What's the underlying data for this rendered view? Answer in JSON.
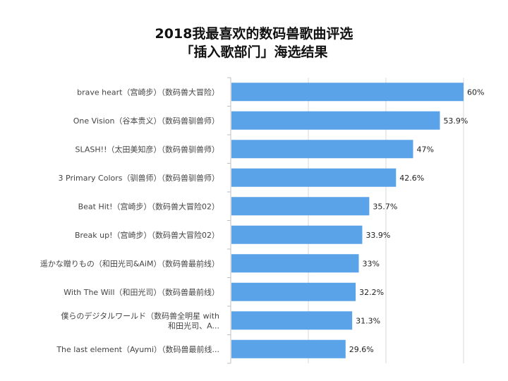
{
  "chart_data": {
    "type": "bar",
    "orientation": "horizontal",
    "title": "2018我最喜欢的数码兽歌曲评选",
    "subtitle": "「插入歌部门」海选结果",
    "categories": [
      [
        "brave heart（宫崎步）（数码兽大冒险）"
      ],
      [
        "One Vision（谷本贵义）（数码兽驯兽师）"
      ],
      [
        "SLASH!!（太田美知彦）（数码兽驯兽师）"
      ],
      [
        "3 Primary Colors（驯兽师）（数码兽驯兽师）"
      ],
      [
        "Beat Hit!（宫崎步）（数码兽大冒险02）"
      ],
      [
        "Break up!（宫崎步）（数码兽大冒险02）"
      ],
      [
        "遥かな贈りもの（和田光司&AiM）（数码兽最前线）"
      ],
      [
        "With The Will（和田光司）（数码兽最前线）"
      ],
      [
        "僕らのデジタルワールド（数码兽全明星 with",
        "和田光司、A..."
      ],
      [
        "The last element（Ayumi）（数码兽最前线..."
      ]
    ],
    "values": [
      60,
      53.9,
      47,
      42.6,
      35.7,
      33.9,
      33,
      32.2,
      31.3,
      29.6
    ],
    "value_labels": [
      "60%",
      "53.9%",
      "47%",
      "42.6%",
      "35.7%",
      "33.9%",
      "33%",
      "32.2%",
      "31.3%",
      "29.6%"
    ],
    "unit": "%",
    "xlim": [
      0,
      60
    ],
    "gridlines": [
      0,
      20,
      40,
      60
    ],
    "grid": true,
    "legend": "none",
    "bar_color": "#5AA3E8"
  }
}
